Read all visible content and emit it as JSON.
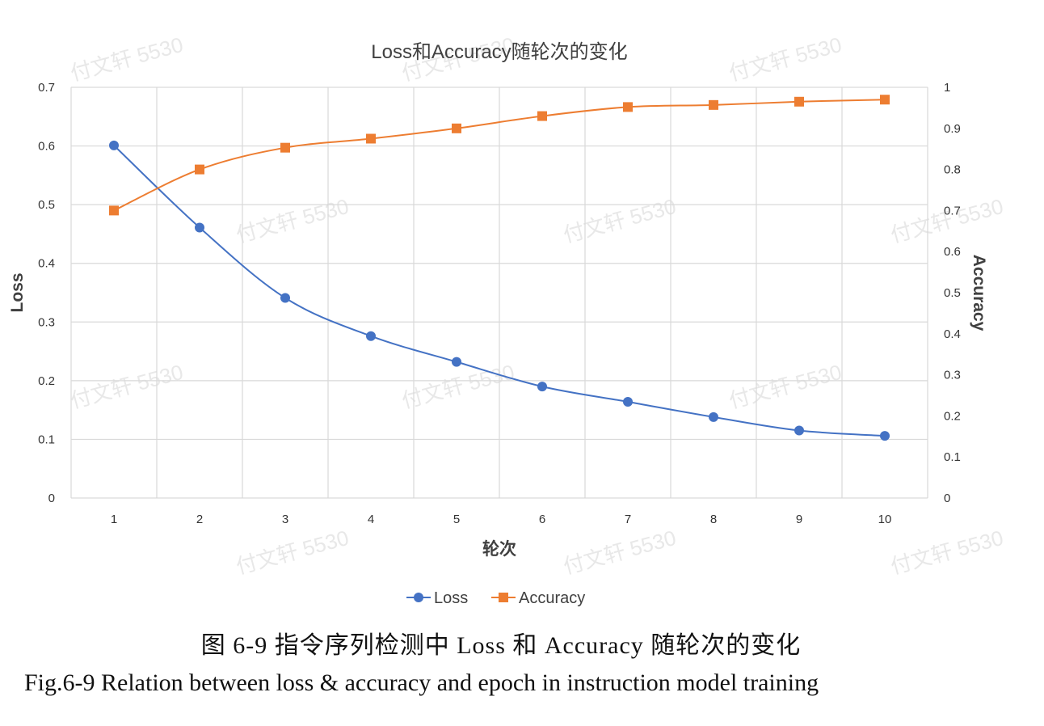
{
  "chart_data": {
    "type": "line",
    "title": "Loss和Accuracy随轮次的变化",
    "xlabel": "轮次",
    "ylabel_left": "Loss",
    "ylabel_right": "Accuracy",
    "x": [
      1,
      2,
      3,
      4,
      5,
      6,
      7,
      8,
      9,
      10
    ],
    "y_left_range": [
      0,
      0.7
    ],
    "y_left_ticks": [
      "0",
      "0.1",
      "0.2",
      "0.3",
      "0.4",
      "0.5",
      "0.6",
      "0.7"
    ],
    "y_right_range": [
      0,
      1
    ],
    "y_right_ticks": [
      "0",
      "0.1",
      "0.2",
      "0.3",
      "0.4",
      "0.5",
      "0.6",
      "0.7",
      "0.8",
      "0.9",
      "1"
    ],
    "grid": true,
    "legend_position": "bottom",
    "series": [
      {
        "name": "Loss",
        "axis": "left",
        "color": "#4472C4",
        "marker": "circle",
        "values": [
          0.601,
          0.461,
          0.341,
          0.276,
          0.232,
          0.19,
          0.164,
          0.138,
          0.115,
          0.106
        ]
      },
      {
        "name": "Accuracy",
        "axis": "right",
        "color": "#ED7D31",
        "marker": "square",
        "values": [
          0.7,
          0.8,
          0.853,
          0.875,
          0.9,
          0.93,
          0.952,
          0.957,
          0.965,
          0.97
        ]
      }
    ]
  },
  "watermark_text": "付文轩 5530",
  "captions": {
    "cn": "图 6-9  指令序列检测中 Loss 和 Accuracy 随轮次的变化",
    "en": "Fig.6-9 Relation between loss & accuracy and epoch in instruction model training"
  }
}
